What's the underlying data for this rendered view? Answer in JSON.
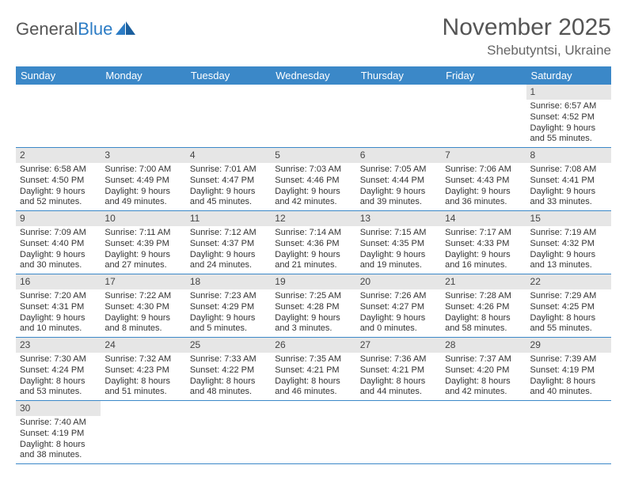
{
  "logo": {
    "text_a": "General",
    "text_b": "Blue"
  },
  "title": "November 2025",
  "location": "Shebutyntsi, Ukraine",
  "colors": {
    "header_bg": "#3b88c8",
    "header_fg": "#ffffff",
    "daynum_bg": "#e6e6e6",
    "row_divider": "#3b88c8",
    "logo_blue": "#2c7cc5",
    "text": "#333333",
    "title_color": "#555555"
  },
  "weekdays": [
    "Sunday",
    "Monday",
    "Tuesday",
    "Wednesday",
    "Thursday",
    "Friday",
    "Saturday"
  ],
  "weeks": [
    [
      null,
      null,
      null,
      null,
      null,
      null,
      {
        "n": "1",
        "sr": "6:57 AM",
        "ss": "4:52 PM",
        "dl": "9 hours and 55 minutes."
      }
    ],
    [
      {
        "n": "2",
        "sr": "6:58 AM",
        "ss": "4:50 PM",
        "dl": "9 hours and 52 minutes."
      },
      {
        "n": "3",
        "sr": "7:00 AM",
        "ss": "4:49 PM",
        "dl": "9 hours and 49 minutes."
      },
      {
        "n": "4",
        "sr": "7:01 AM",
        "ss": "4:47 PM",
        "dl": "9 hours and 45 minutes."
      },
      {
        "n": "5",
        "sr": "7:03 AM",
        "ss": "4:46 PM",
        "dl": "9 hours and 42 minutes."
      },
      {
        "n": "6",
        "sr": "7:05 AM",
        "ss": "4:44 PM",
        "dl": "9 hours and 39 minutes."
      },
      {
        "n": "7",
        "sr": "7:06 AM",
        "ss": "4:43 PM",
        "dl": "9 hours and 36 minutes."
      },
      {
        "n": "8",
        "sr": "7:08 AM",
        "ss": "4:41 PM",
        "dl": "9 hours and 33 minutes."
      }
    ],
    [
      {
        "n": "9",
        "sr": "7:09 AM",
        "ss": "4:40 PM",
        "dl": "9 hours and 30 minutes."
      },
      {
        "n": "10",
        "sr": "7:11 AM",
        "ss": "4:39 PM",
        "dl": "9 hours and 27 minutes."
      },
      {
        "n": "11",
        "sr": "7:12 AM",
        "ss": "4:37 PM",
        "dl": "9 hours and 24 minutes."
      },
      {
        "n": "12",
        "sr": "7:14 AM",
        "ss": "4:36 PM",
        "dl": "9 hours and 21 minutes."
      },
      {
        "n": "13",
        "sr": "7:15 AM",
        "ss": "4:35 PM",
        "dl": "9 hours and 19 minutes."
      },
      {
        "n": "14",
        "sr": "7:17 AM",
        "ss": "4:33 PM",
        "dl": "9 hours and 16 minutes."
      },
      {
        "n": "15",
        "sr": "7:19 AM",
        "ss": "4:32 PM",
        "dl": "9 hours and 13 minutes."
      }
    ],
    [
      {
        "n": "16",
        "sr": "7:20 AM",
        "ss": "4:31 PM",
        "dl": "9 hours and 10 minutes."
      },
      {
        "n": "17",
        "sr": "7:22 AM",
        "ss": "4:30 PM",
        "dl": "9 hours and 8 minutes."
      },
      {
        "n": "18",
        "sr": "7:23 AM",
        "ss": "4:29 PM",
        "dl": "9 hours and 5 minutes."
      },
      {
        "n": "19",
        "sr": "7:25 AM",
        "ss": "4:28 PM",
        "dl": "9 hours and 3 minutes."
      },
      {
        "n": "20",
        "sr": "7:26 AM",
        "ss": "4:27 PM",
        "dl": "9 hours and 0 minutes."
      },
      {
        "n": "21",
        "sr": "7:28 AM",
        "ss": "4:26 PM",
        "dl": "8 hours and 58 minutes."
      },
      {
        "n": "22",
        "sr": "7:29 AM",
        "ss": "4:25 PM",
        "dl": "8 hours and 55 minutes."
      }
    ],
    [
      {
        "n": "23",
        "sr": "7:30 AM",
        "ss": "4:24 PM",
        "dl": "8 hours and 53 minutes."
      },
      {
        "n": "24",
        "sr": "7:32 AM",
        "ss": "4:23 PM",
        "dl": "8 hours and 51 minutes."
      },
      {
        "n": "25",
        "sr": "7:33 AM",
        "ss": "4:22 PM",
        "dl": "8 hours and 48 minutes."
      },
      {
        "n": "26",
        "sr": "7:35 AM",
        "ss": "4:21 PM",
        "dl": "8 hours and 46 minutes."
      },
      {
        "n": "27",
        "sr": "7:36 AM",
        "ss": "4:21 PM",
        "dl": "8 hours and 44 minutes."
      },
      {
        "n": "28",
        "sr": "7:37 AM",
        "ss": "4:20 PM",
        "dl": "8 hours and 42 minutes."
      },
      {
        "n": "29",
        "sr": "7:39 AM",
        "ss": "4:19 PM",
        "dl": "8 hours and 40 minutes."
      }
    ],
    [
      {
        "n": "30",
        "sr": "7:40 AM",
        "ss": "4:19 PM",
        "dl": "8 hours and 38 minutes."
      },
      null,
      null,
      null,
      null,
      null,
      null
    ]
  ],
  "labels": {
    "sunrise": "Sunrise:",
    "sunset": "Sunset:",
    "daylight": "Daylight:"
  }
}
